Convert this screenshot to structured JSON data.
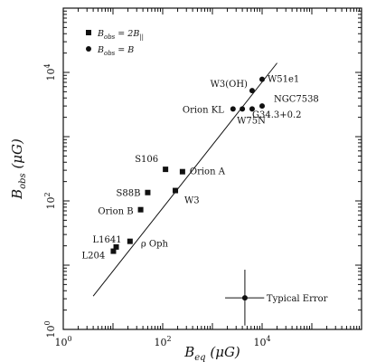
{
  "chart_data": {
    "type": "scatter",
    "title": "",
    "xlabel": "B_eq (μG)",
    "ylabel": "B_obs (μG)",
    "xscale": "log",
    "yscale": "log",
    "xlim": [
      1,
      1000000
    ],
    "ylim": [
      1,
      100000
    ],
    "grid": false,
    "legend_position": "top-left",
    "x_tick_labels": [
      {
        "base": "10",
        "exp": "0",
        "value": 1
      },
      {
        "base": "10",
        "exp": "2",
        "value": 100
      },
      {
        "base": "10",
        "exp": "4",
        "value": 10000
      }
    ],
    "y_tick_labels": [
      {
        "base": "10",
        "exp": "0",
        "value": 1
      },
      {
        "base": "10",
        "exp": "2",
        "value": 100
      },
      {
        "base": "10",
        "exp": "4",
        "value": 10000
      }
    ],
    "x_label_text": {
      "base": "B",
      "sub": "eq",
      "unit": "(μG)"
    },
    "y_label_text": {
      "base": "B",
      "sub": "obs",
      "unit": "(μG)"
    },
    "legend": [
      {
        "marker": "square",
        "text_lhs": "B",
        "text_lhs_sub": "obs",
        "text_rhs": " = 2B",
        "text_rhs_sub": "||"
      },
      {
        "marker": "circle",
        "text_lhs": "B",
        "text_lhs_sub": "obs",
        "text_rhs": " = B",
        "text_rhs_sub": ""
      }
    ],
    "series": [
      {
        "marker": "square",
        "points": [
          {
            "label": "L1641",
            "x": 11.6,
            "y": 19.2
          },
          {
            "label": "L204",
            "x": 10.2,
            "y": 16.5
          },
          {
            "label": "ρ Oph",
            "x": 22,
            "y": 23.5
          },
          {
            "label": "Orion B",
            "x": 36,
            "y": 73
          },
          {
            "label": "S88B",
            "x": 50,
            "y": 135
          },
          {
            "label": "S106",
            "x": 114,
            "y": 310
          },
          {
            "label": "Orion A",
            "x": 250,
            "y": 285
          },
          {
            "label": "W3",
            "x": 180,
            "y": 145
          }
        ]
      },
      {
        "marker": "circle",
        "points": [
          {
            "label": "Orion KL",
            "x": 2600,
            "y": 2700
          },
          {
            "label": "W75N",
            "x": 4000,
            "y": 2700
          },
          {
            "label": "W3(OH)",
            "x": 6300,
            "y": 5200
          },
          {
            "label": "NGC7538",
            "x": 6300,
            "y": 2700
          },
          {
            "label": "G34.3+0.2",
            "x": 10000,
            "y": 3000
          },
          {
            "label": "W51e1",
            "x": 10000,
            "y": 7800
          }
        ]
      }
    ],
    "fit_line": {
      "x": [
        4,
        20000
      ],
      "y": [
        3.3,
        14000
      ]
    },
    "typical_error": {
      "label": "Typical Error",
      "x": 4500,
      "y": 3.1,
      "x_err_low": 1800,
      "x_err_high": 11000,
      "y_err_low": 1.15,
      "y_err_high": 8.5
    }
  }
}
